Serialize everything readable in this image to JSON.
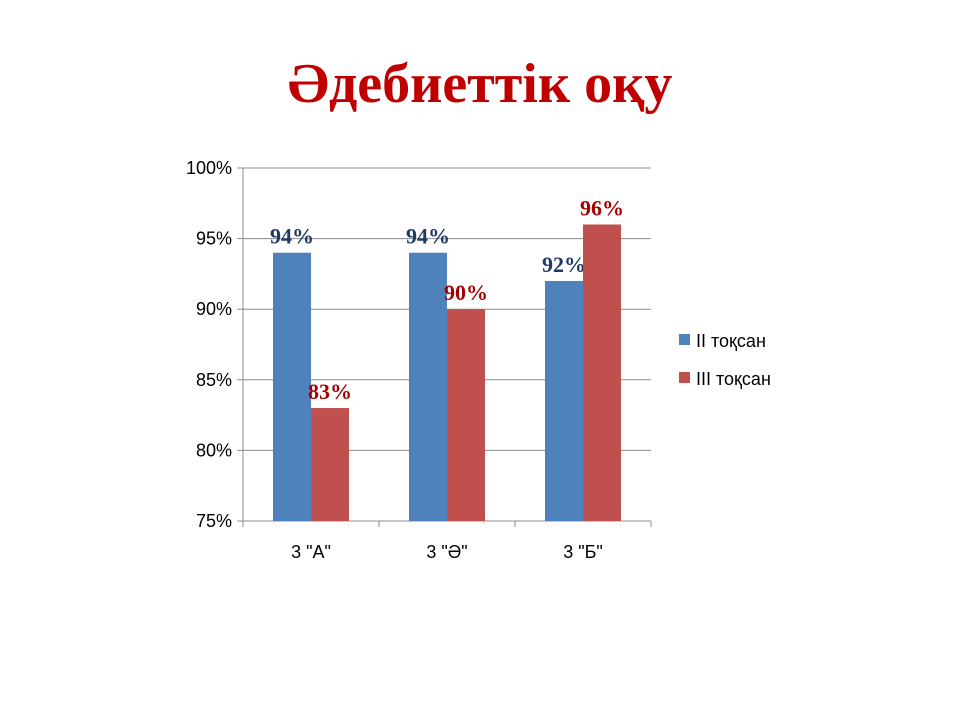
{
  "title": "Әдебиеттік оқу",
  "chart_data": {
    "type": "bar",
    "title": "Әдебиеттік оқу",
    "categories": [
      "3 \"А\"",
      "3 \"Ә\"",
      "3 \"Б\""
    ],
    "series": [
      {
        "name": "ІІ тоқсан",
        "values": [
          94,
          94,
          92
        ],
        "labels": [
          "94%",
          "94%",
          "92%"
        ],
        "color": "#4f81bd",
        "label_color": "#1f3864"
      },
      {
        "name": "ІІІ тоқсан",
        "values": [
          83,
          90,
          96
        ],
        "labels": [
          "83%",
          "90%",
          "96%"
        ],
        "color": "#c0504d",
        "label_color": "#a50000"
      }
    ],
    "ylim": [
      75,
      100
    ],
    "yticks": [
      75,
      80,
      85,
      90,
      95,
      100
    ],
    "ytick_labels": [
      "75%",
      "80%",
      "85%",
      "90%",
      "95%",
      "100%"
    ],
    "xlabel": "",
    "ylabel": "",
    "grid": true,
    "legend": "right"
  }
}
